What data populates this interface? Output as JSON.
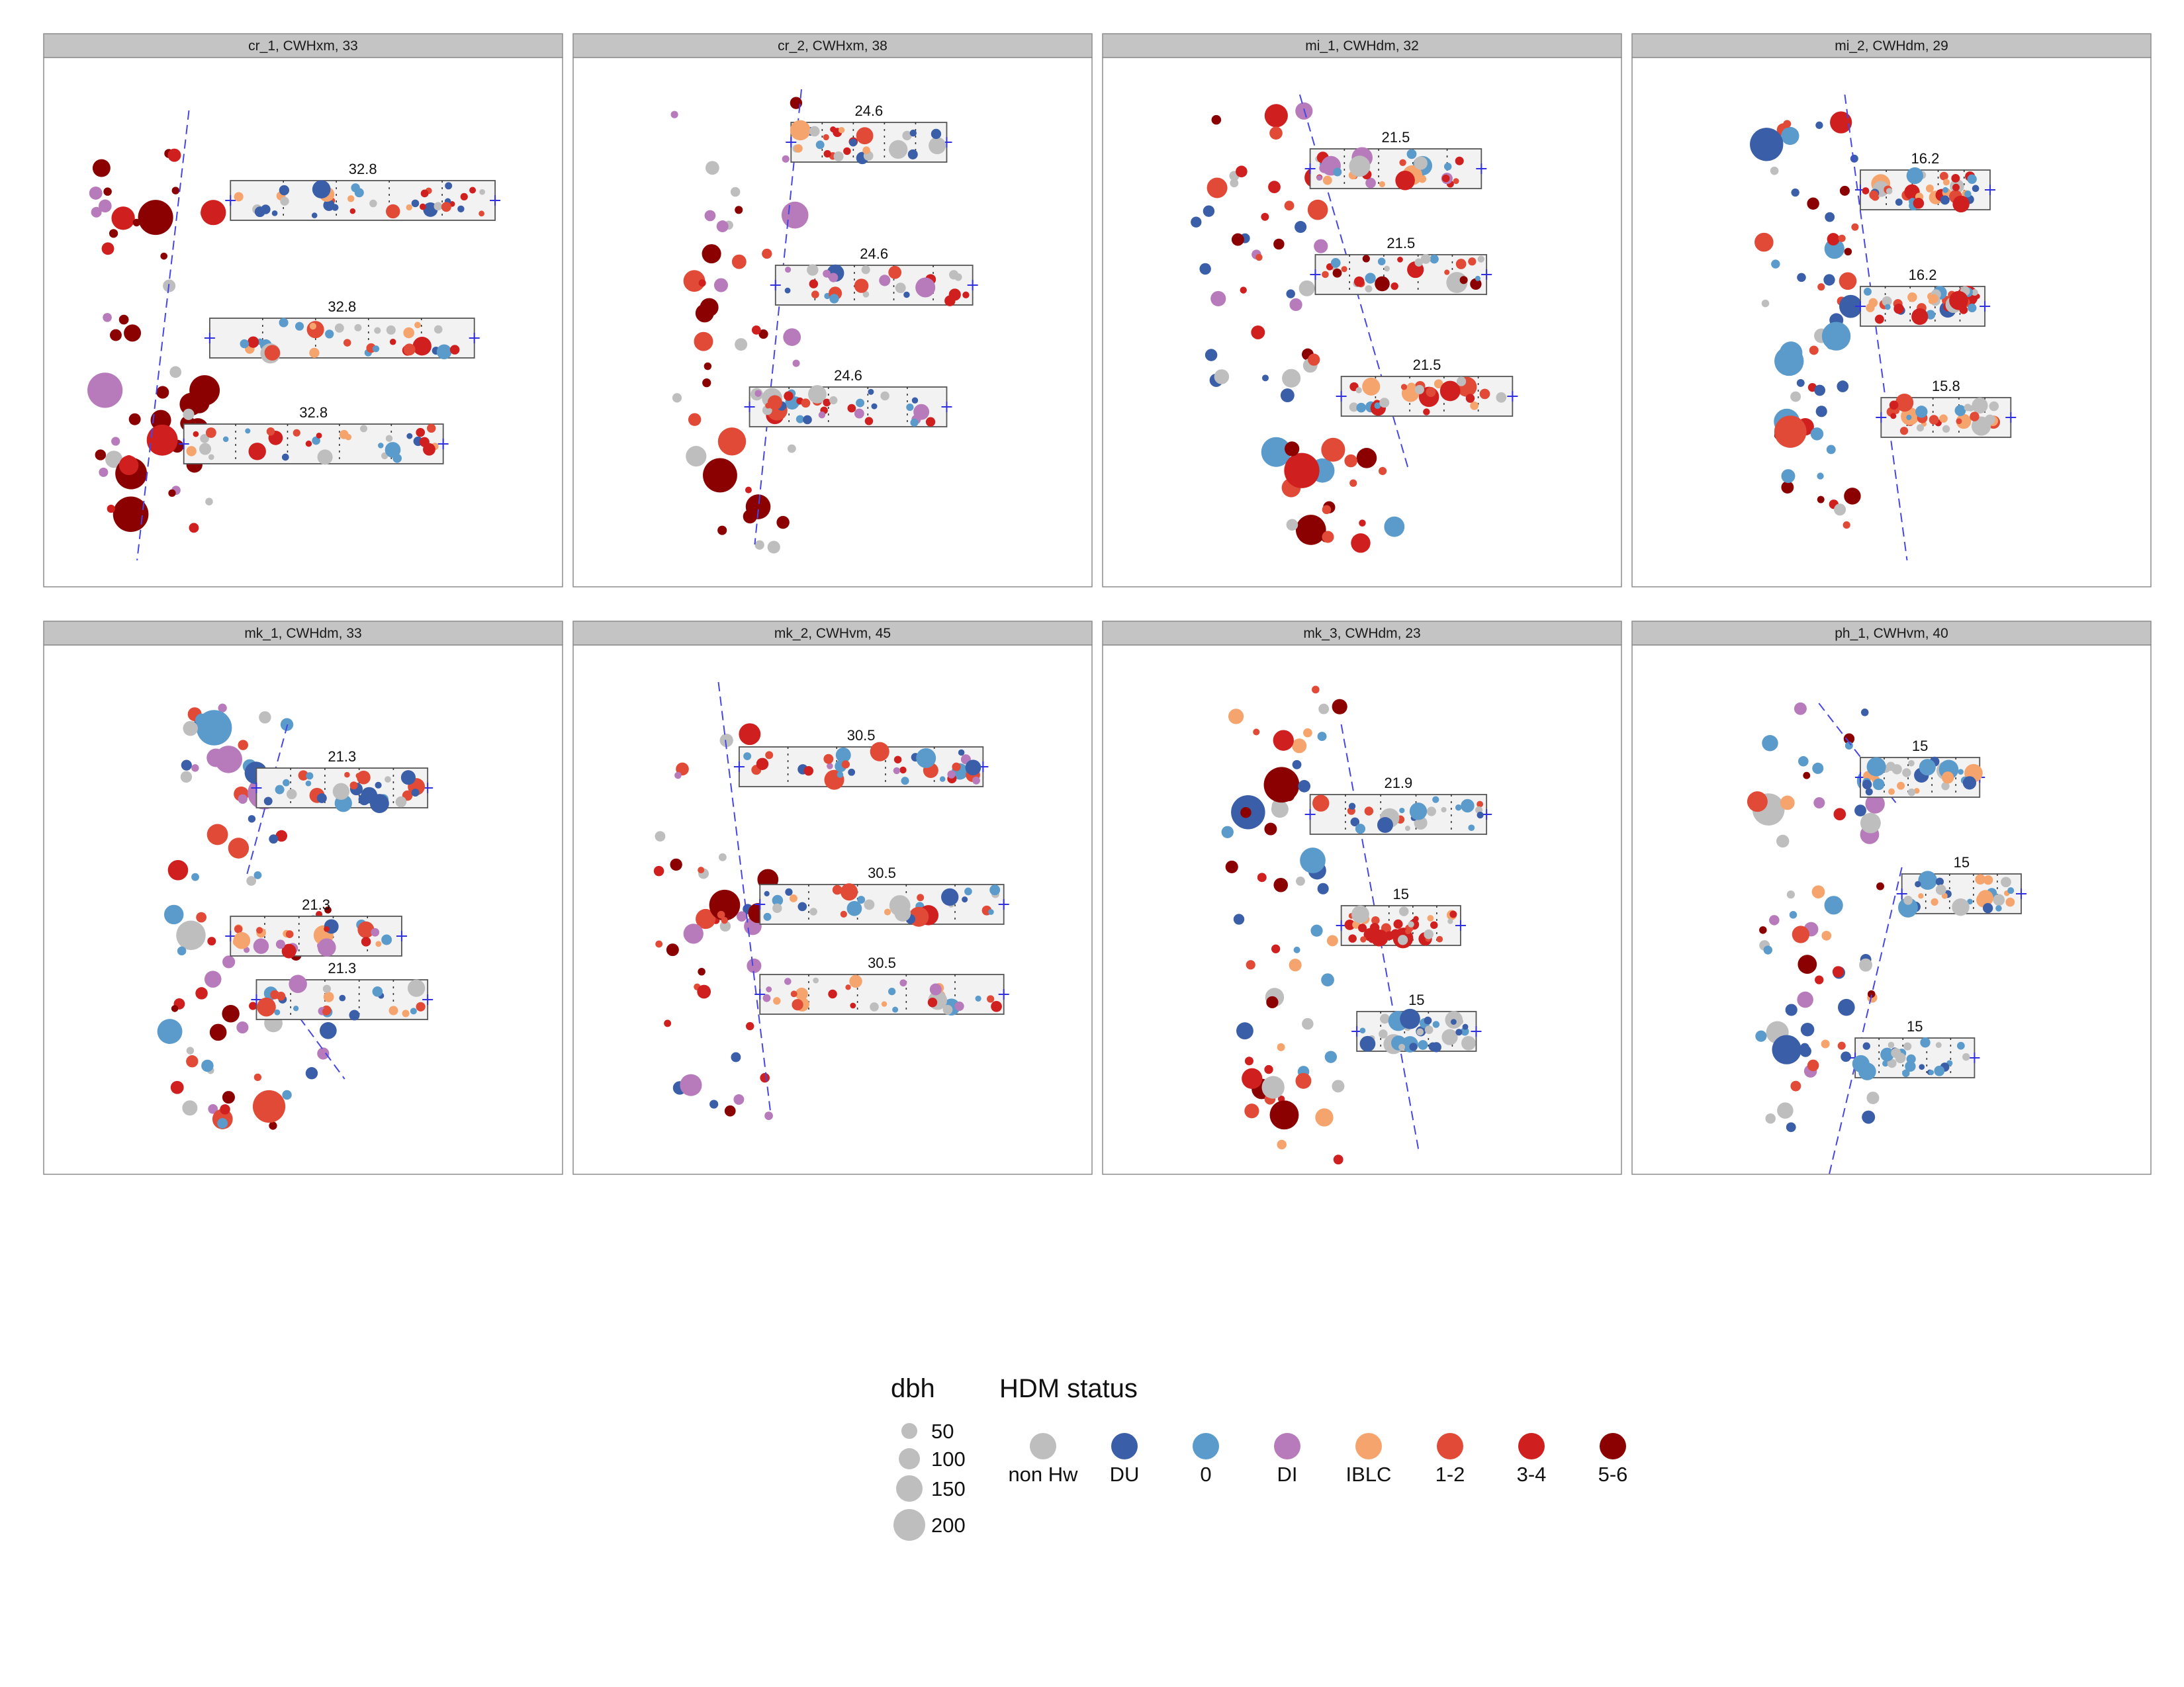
{
  "chart_data": {
    "type": "scatter",
    "colors": {
      "non Hw": "#bebebe",
      "DU": "#3a5ea8",
      "0": "#5b9bcb",
      "DI": "#b77bbb",
      "IBLC": "#f6a46d",
      "1-2": "#e04a36",
      "3-4": "#cf1f1f",
      "5-6": "#8b0000"
    },
    "legend": {
      "size_title": "dbh",
      "size_entries": [
        "50",
        "100",
        "150",
        "200"
      ],
      "size_values": [
        50,
        100,
        150,
        200
      ],
      "color_title": "HDM status",
      "color_entries": [
        "non Hw",
        "DU",
        "0",
        "DI",
        "IBLC",
        "1-2",
        "3-4",
        "5-6"
      ]
    },
    "panels": [
      {
        "title": "cr_1, CWHxm, 33",
        "boundary": [
          [
            0.28,
            0.1
          ],
          [
            0.18,
            0.95
          ]
        ],
        "transects": [
          {
            "label": "32.8",
            "x0": 0.36,
            "x1": 0.87,
            "y": 0.27,
            "seed": 11,
            "pal": [
              "non Hw",
              "1-2",
              "0",
              "DU",
              "3-4",
              "IBLC"
            ]
          },
          {
            "label": "32.8",
            "x0": 0.32,
            "x1": 0.83,
            "y": 0.53,
            "seed": 12,
            "pal": [
              "1-2",
              "non Hw",
              "0",
              "3-4",
              "IBLC",
              "DU"
            ]
          },
          {
            "label": "32.8",
            "x0": 0.27,
            "x1": 0.77,
            "y": 0.73,
            "seed": 13,
            "pal": [
              "non Hw",
              "1-2",
              "IBLC",
              "0",
              "3-4",
              "DU"
            ]
          }
        ],
        "edges": [
          {
            "x0": 0.1,
            "x1": 0.33,
            "y0": 0.12,
            "y1": 0.94,
            "n": 50,
            "seed": 14,
            "pal": [
              "5-6",
              "5-6",
              "5-6",
              "3-4",
              "non Hw",
              "DI"
            ]
          }
        ]
      },
      {
        "title": "cr_2, CWHxm, 38",
        "boundary": [
          [
            0.44,
            0.06
          ],
          [
            0.35,
            0.92
          ]
        ],
        "transects": [
          {
            "label": "24.6",
            "x0": 0.42,
            "x1": 0.72,
            "y": 0.16,
            "seed": 21,
            "pal": [
              "non Hw",
              "3-4",
              "0",
              "IBLC",
              "1-2",
              "DU"
            ]
          },
          {
            "label": "24.6",
            "x0": 0.39,
            "x1": 0.77,
            "y": 0.43,
            "seed": 22,
            "pal": [
              "non Hw",
              "3-4",
              "DU",
              "1-2",
              "DI",
              "0"
            ]
          },
          {
            "label": "24.6",
            "x0": 0.34,
            "x1": 0.72,
            "y": 0.66,
            "seed": 23,
            "pal": [
              "1-2",
              "DI",
              "0",
              "non Hw",
              "DU",
              "3-4"
            ]
          }
        ],
        "edges": [
          {
            "x0": 0.18,
            "x1": 0.44,
            "y0": 0.08,
            "y1": 0.93,
            "n": 42,
            "seed": 24,
            "pal": [
              "5-6",
              "5-6",
              "non Hw",
              "non Hw",
              "3-4",
              "DI",
              "1-2"
            ]
          }
        ]
      },
      {
        "title": "mi_1, CWHdm, 32",
        "boundary": [
          [
            0.38,
            0.07
          ],
          [
            0.59,
            0.78
          ]
        ],
        "transects": [
          {
            "label": "21.5",
            "x0": 0.4,
            "x1": 0.73,
            "y": 0.21,
            "seed": 31,
            "pal": [
              "non Hw",
              "3-4",
              "1-2",
              "DI",
              "0",
              "IBLC"
            ]
          },
          {
            "label": "21.5",
            "x0": 0.41,
            "x1": 0.74,
            "y": 0.41,
            "seed": 32,
            "pal": [
              "non Hw",
              "3-4",
              "1-2",
              "0",
              "5-6",
              "IBLC"
            ]
          },
          {
            "label": "21.5",
            "x0": 0.46,
            "x1": 0.79,
            "y": 0.64,
            "seed": 33,
            "pal": [
              "non Hw",
              "1-2",
              "IBLC",
              "0",
              "3-4"
            ]
          }
        ],
        "edges": [
          {
            "x0": 0.18,
            "x1": 0.44,
            "y0": 0.08,
            "y1": 0.68,
            "n": 38,
            "seed": 34,
            "pal": [
              "3-4",
              "5-6",
              "1-2",
              "non Hw",
              "DI",
              "DU"
            ]
          },
          {
            "x0": 0.33,
            "x1": 0.57,
            "y0": 0.73,
            "y1": 0.92,
            "n": 20,
            "seed": 35,
            "pal": [
              "1-2",
              "3-4",
              "5-6",
              "non Hw",
              "0"
            ]
          }
        ]
      },
      {
        "title": "mi_2, CWHdm, 29",
        "boundary": [
          [
            0.41,
            0.07
          ],
          [
            0.53,
            0.95
          ]
        ],
        "transects": [
          {
            "label": "16.2",
            "x0": 0.44,
            "x1": 0.69,
            "y": 0.25,
            "seed": 41,
            "pal": [
              "1-2",
              "IBLC",
              "3-4",
              "0",
              "non Hw",
              "DU"
            ]
          },
          {
            "label": "16.2",
            "x0": 0.44,
            "x1": 0.68,
            "y": 0.47,
            "seed": 42,
            "pal": [
              "1-2",
              "IBLC",
              "non Hw",
              "0",
              "3-4",
              "DU"
            ]
          },
          {
            "label": "15.8",
            "x0": 0.48,
            "x1": 0.73,
            "y": 0.68,
            "seed": 43,
            "pal": [
              "1-2",
              "3-4",
              "0",
              "non Hw",
              "IBLC"
            ]
          }
        ],
        "edges": [
          {
            "x0": 0.25,
            "x1": 0.43,
            "y0": 0.12,
            "y1": 0.9,
            "n": 55,
            "seed": 44,
            "pal": [
              "3-4",
              "1-2",
              "5-6",
              "0",
              "non Hw",
              "DU"
            ]
          }
        ]
      },
      {
        "title": "mk_1, CWHdm, 33",
        "boundary": [
          [
            0.47,
            0.15
          ],
          [
            0.39,
            0.44
          ]
        ],
        "boundary2": [
          [
            0.46,
            0.66
          ],
          [
            0.58,
            0.82
          ]
        ],
        "transects": [
          {
            "label": "21.3",
            "x0": 0.41,
            "x1": 0.74,
            "y": 0.27,
            "seed": 51,
            "pal": [
              "0",
              "non Hw",
              "DU",
              "1-2"
            ]
          },
          {
            "label": "21.3",
            "x0": 0.36,
            "x1": 0.69,
            "y": 0.55,
            "seed": 52,
            "pal": [
              "1-2",
              "3-4",
              "DU",
              "0",
              "IBLC",
              "non Hw",
              "DI"
            ]
          },
          {
            "label": "21.3",
            "x0": 0.41,
            "x1": 0.74,
            "y": 0.67,
            "seed": 53,
            "pal": [
              "0",
              "non Hw",
              "1-2",
              "DU",
              "IBLC",
              "DI"
            ]
          }
        ],
        "edges": [
          {
            "x0": 0.24,
            "x1": 0.47,
            "y0": 0.09,
            "y1": 0.45,
            "n": 30,
            "seed": 54,
            "pal": [
              "0",
              "non Hw",
              "DU",
              "1-2",
              "3-4",
              "DI"
            ]
          },
          {
            "x0": 0.24,
            "x1": 0.56,
            "y0": 0.5,
            "y1": 0.91,
            "n": 40,
            "seed": 55,
            "pal": [
              "1-2",
              "DU",
              "0",
              "3-4",
              "5-6",
              "non Hw",
              "DI"
            ]
          }
        ]
      },
      {
        "title": "mk_2, CWHvm, 45",
        "boundary": [
          [
            0.28,
            0.07
          ],
          [
            0.38,
            0.88
          ]
        ],
        "transects": [
          {
            "label": "30.5",
            "x0": 0.32,
            "x1": 0.79,
            "y": 0.23,
            "seed": 61,
            "pal": [
              "0",
              "DU",
              "1-2",
              "3-4",
              "DI"
            ]
          },
          {
            "label": "30.5",
            "x0": 0.36,
            "x1": 0.83,
            "y": 0.49,
            "seed": 62,
            "pal": [
              "1-2",
              "0",
              "DU",
              "3-4",
              "IBLC",
              "non Hw"
            ]
          },
          {
            "label": "30.5",
            "x0": 0.36,
            "x1": 0.83,
            "y": 0.66,
            "seed": 63,
            "pal": [
              "1-2",
              "DI",
              "0",
              "IBLC",
              "3-4",
              "non Hw"
            ]
          }
        ],
        "edges": [
          {
            "x0": 0.16,
            "x1": 0.41,
            "y0": 0.15,
            "y1": 0.89,
            "n": 40,
            "seed": 64,
            "pal": [
              "1-2",
              "3-4",
              "5-6",
              "non Hw",
              "DI",
              "DU"
            ]
          }
        ]
      },
      {
        "title": "mk_3, CWHdm, 23",
        "boundary": [
          [
            0.46,
            0.15
          ],
          [
            0.61,
            0.96
          ]
        ],
        "transects": [
          {
            "label": "21.9",
            "x0": 0.4,
            "x1": 0.74,
            "y": 0.32,
            "seed": 71,
            "pal": [
              "non Hw",
              "0",
              "1-2",
              "DU"
            ]
          },
          {
            "label": "15",
            "x0": 0.46,
            "x1": 0.69,
            "y": 0.53,
            "seed": 72,
            "pal": [
              "1-2",
              "non Hw",
              "IBLC",
              "3-4"
            ]
          },
          {
            "label": "15",
            "x0": 0.49,
            "x1": 0.72,
            "y": 0.73,
            "seed": 73,
            "pal": [
              "0",
              "DU",
              "non Hw"
            ]
          }
        ],
        "edges": [
          {
            "x0": 0.24,
            "x1": 0.46,
            "y0": 0.08,
            "y1": 0.98,
            "n": 58,
            "seed": 74,
            "pal": [
              "3-4",
              "1-2",
              "5-6",
              "non Hw",
              "IBLC",
              "DU",
              "0"
            ]
          }
        ]
      },
      {
        "title": "ph_1, CWHvm, 40",
        "boundary": [
          [
            0.36,
            0.11
          ],
          [
            0.51,
            0.3
          ]
        ],
        "boundary2": [
          [
            0.52,
            0.42
          ],
          [
            0.38,
            1.0
          ]
        ],
        "transects": [
          {
            "label": "15",
            "x0": 0.44,
            "x1": 0.67,
            "y": 0.25,
            "seed": 81,
            "pal": [
              "0",
              "DU",
              "IBLC",
              "non Hw"
            ]
          },
          {
            "label": "15",
            "x0": 0.52,
            "x1": 0.75,
            "y": 0.47,
            "seed": 82,
            "pal": [
              "non Hw",
              "0",
              "DU",
              "IBLC"
            ]
          },
          {
            "label": "15",
            "x0": 0.43,
            "x1": 0.66,
            "y": 0.78,
            "seed": 83,
            "pal": [
              "0",
              "DU",
              "non Hw"
            ]
          }
        ],
        "edges": [
          {
            "x0": 0.24,
            "x1": 0.49,
            "y0": 0.12,
            "y1": 0.92,
            "n": 60,
            "seed": 84,
            "pal": [
              "0",
              "1-2",
              "3-4",
              "5-6",
              "IBLC",
              "DI",
              "non Hw",
              "DU"
            ]
          }
        ]
      }
    ]
  }
}
